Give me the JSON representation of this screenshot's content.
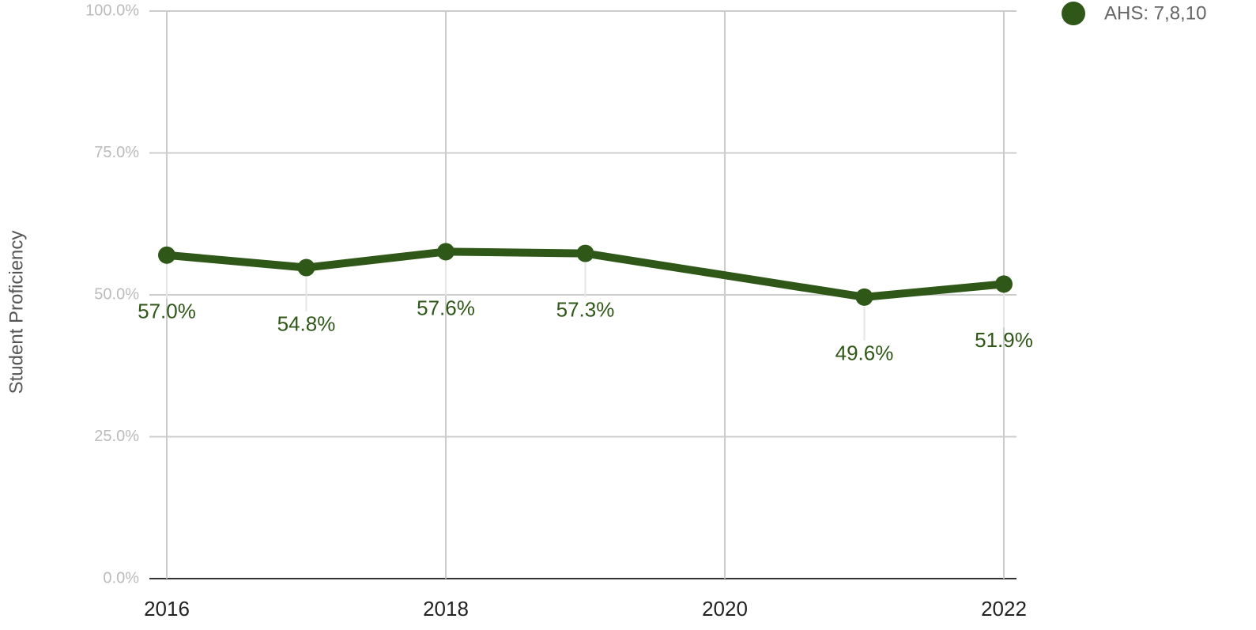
{
  "chart_data": {
    "type": "line",
    "y_label": "Student Proficiency",
    "x": [
      2016,
      2017,
      2018,
      2019,
      2021,
      2022
    ],
    "series": [
      {
        "name": "AHS: 7,8,10",
        "color": "#2e5718",
        "values": [
          57.0,
          54.8,
          57.6,
          57.3,
          49.6,
          51.9
        ],
        "value_labels": [
          "57.0%",
          "54.8%",
          "57.6%",
          "57.3%",
          "49.6%",
          "51.9%"
        ]
      }
    ],
    "xlim": [
      2016,
      2022
    ],
    "xticks": [
      2016,
      2018,
      2020,
      2022
    ],
    "ylim": [
      0,
      100
    ],
    "yticks": [
      {
        "value": 0,
        "label": "0.0%"
      },
      {
        "value": 25,
        "label": "25.0%"
      },
      {
        "value": 50,
        "label": "50.0%"
      },
      {
        "value": 75,
        "label": "75.0%"
      },
      {
        "value": 100,
        "label": "100.0%"
      }
    ],
    "grid": true,
    "legend": "top-right"
  }
}
